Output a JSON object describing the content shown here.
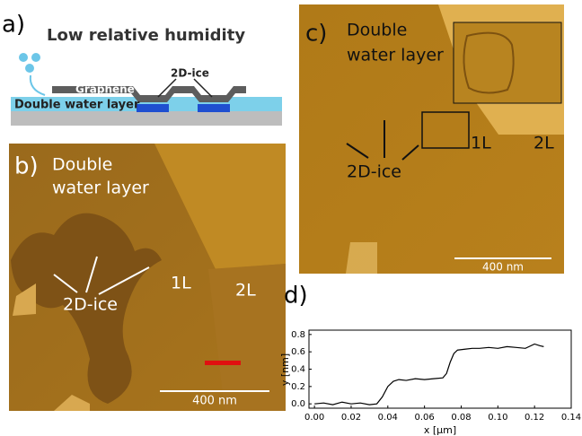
{
  "panel_a": {
    "label": "a)",
    "title": "Low relative humidity",
    "graphene": "Graphene",
    "ice": "2D-ice",
    "water": "Double water layer"
  },
  "panel_b": {
    "label": "b)",
    "water_lines": [
      "Double",
      "water layer"
    ],
    "ice": "2D-ice",
    "layer_1": "1L",
    "layer_2": "2L",
    "scale": "400 nm"
  },
  "panel_c": {
    "label": "c)",
    "water_lines": [
      "Double",
      "water layer"
    ],
    "ice": "2D-ice",
    "layer_1": "1L",
    "layer_2": "2L",
    "scale": "400 nm"
  },
  "panel_d": {
    "label": "d)"
  },
  "chart_data": {
    "type": "line",
    "xlabel": "x [µm]",
    "ylabel": "y [nm]",
    "x": [
      0,
      0.005,
      0.01,
      0.015,
      0.02,
      0.025,
      0.03,
      0.034,
      0.037,
      0.04,
      0.043,
      0.046,
      0.05,
      0.055,
      0.06,
      0.065,
      0.07,
      0.072,
      0.074,
      0.076,
      0.078,
      0.082,
      0.086,
      0.09,
      0.095,
      0.1,
      0.105,
      0.11,
      0.115,
      0.12,
      0.123,
      0.125
    ],
    "series": [
      {
        "color": "#000000",
        "values": [
          0.0,
          0.01,
          -0.01,
          0.02,
          0.0,
          0.01,
          -0.01,
          0.0,
          0.08,
          0.2,
          0.26,
          0.28,
          0.27,
          0.29,
          0.28,
          0.29,
          0.3,
          0.35,
          0.48,
          0.58,
          0.62,
          0.63,
          0.64,
          0.64,
          0.65,
          0.64,
          0.66,
          0.65,
          0.64,
          0.69,
          0.67,
          0.66
        ]
      }
    ],
    "xlim": [
      -0.003,
      0.14
    ],
    "ylim": [
      -0.05,
      0.85
    ],
    "xticks": [
      {
        "value": 0,
        "label": "0.00"
      },
      0.02,
      0.04,
      0.06,
      0.08,
      {
        "value": 0.1,
        "label": "0.10"
      },
      0.12,
      0.14
    ],
    "yticks": [
      {
        "value": 0,
        "label": "0.0"
      },
      0.2,
      0.4,
      0.6,
      0.8
    ]
  }
}
